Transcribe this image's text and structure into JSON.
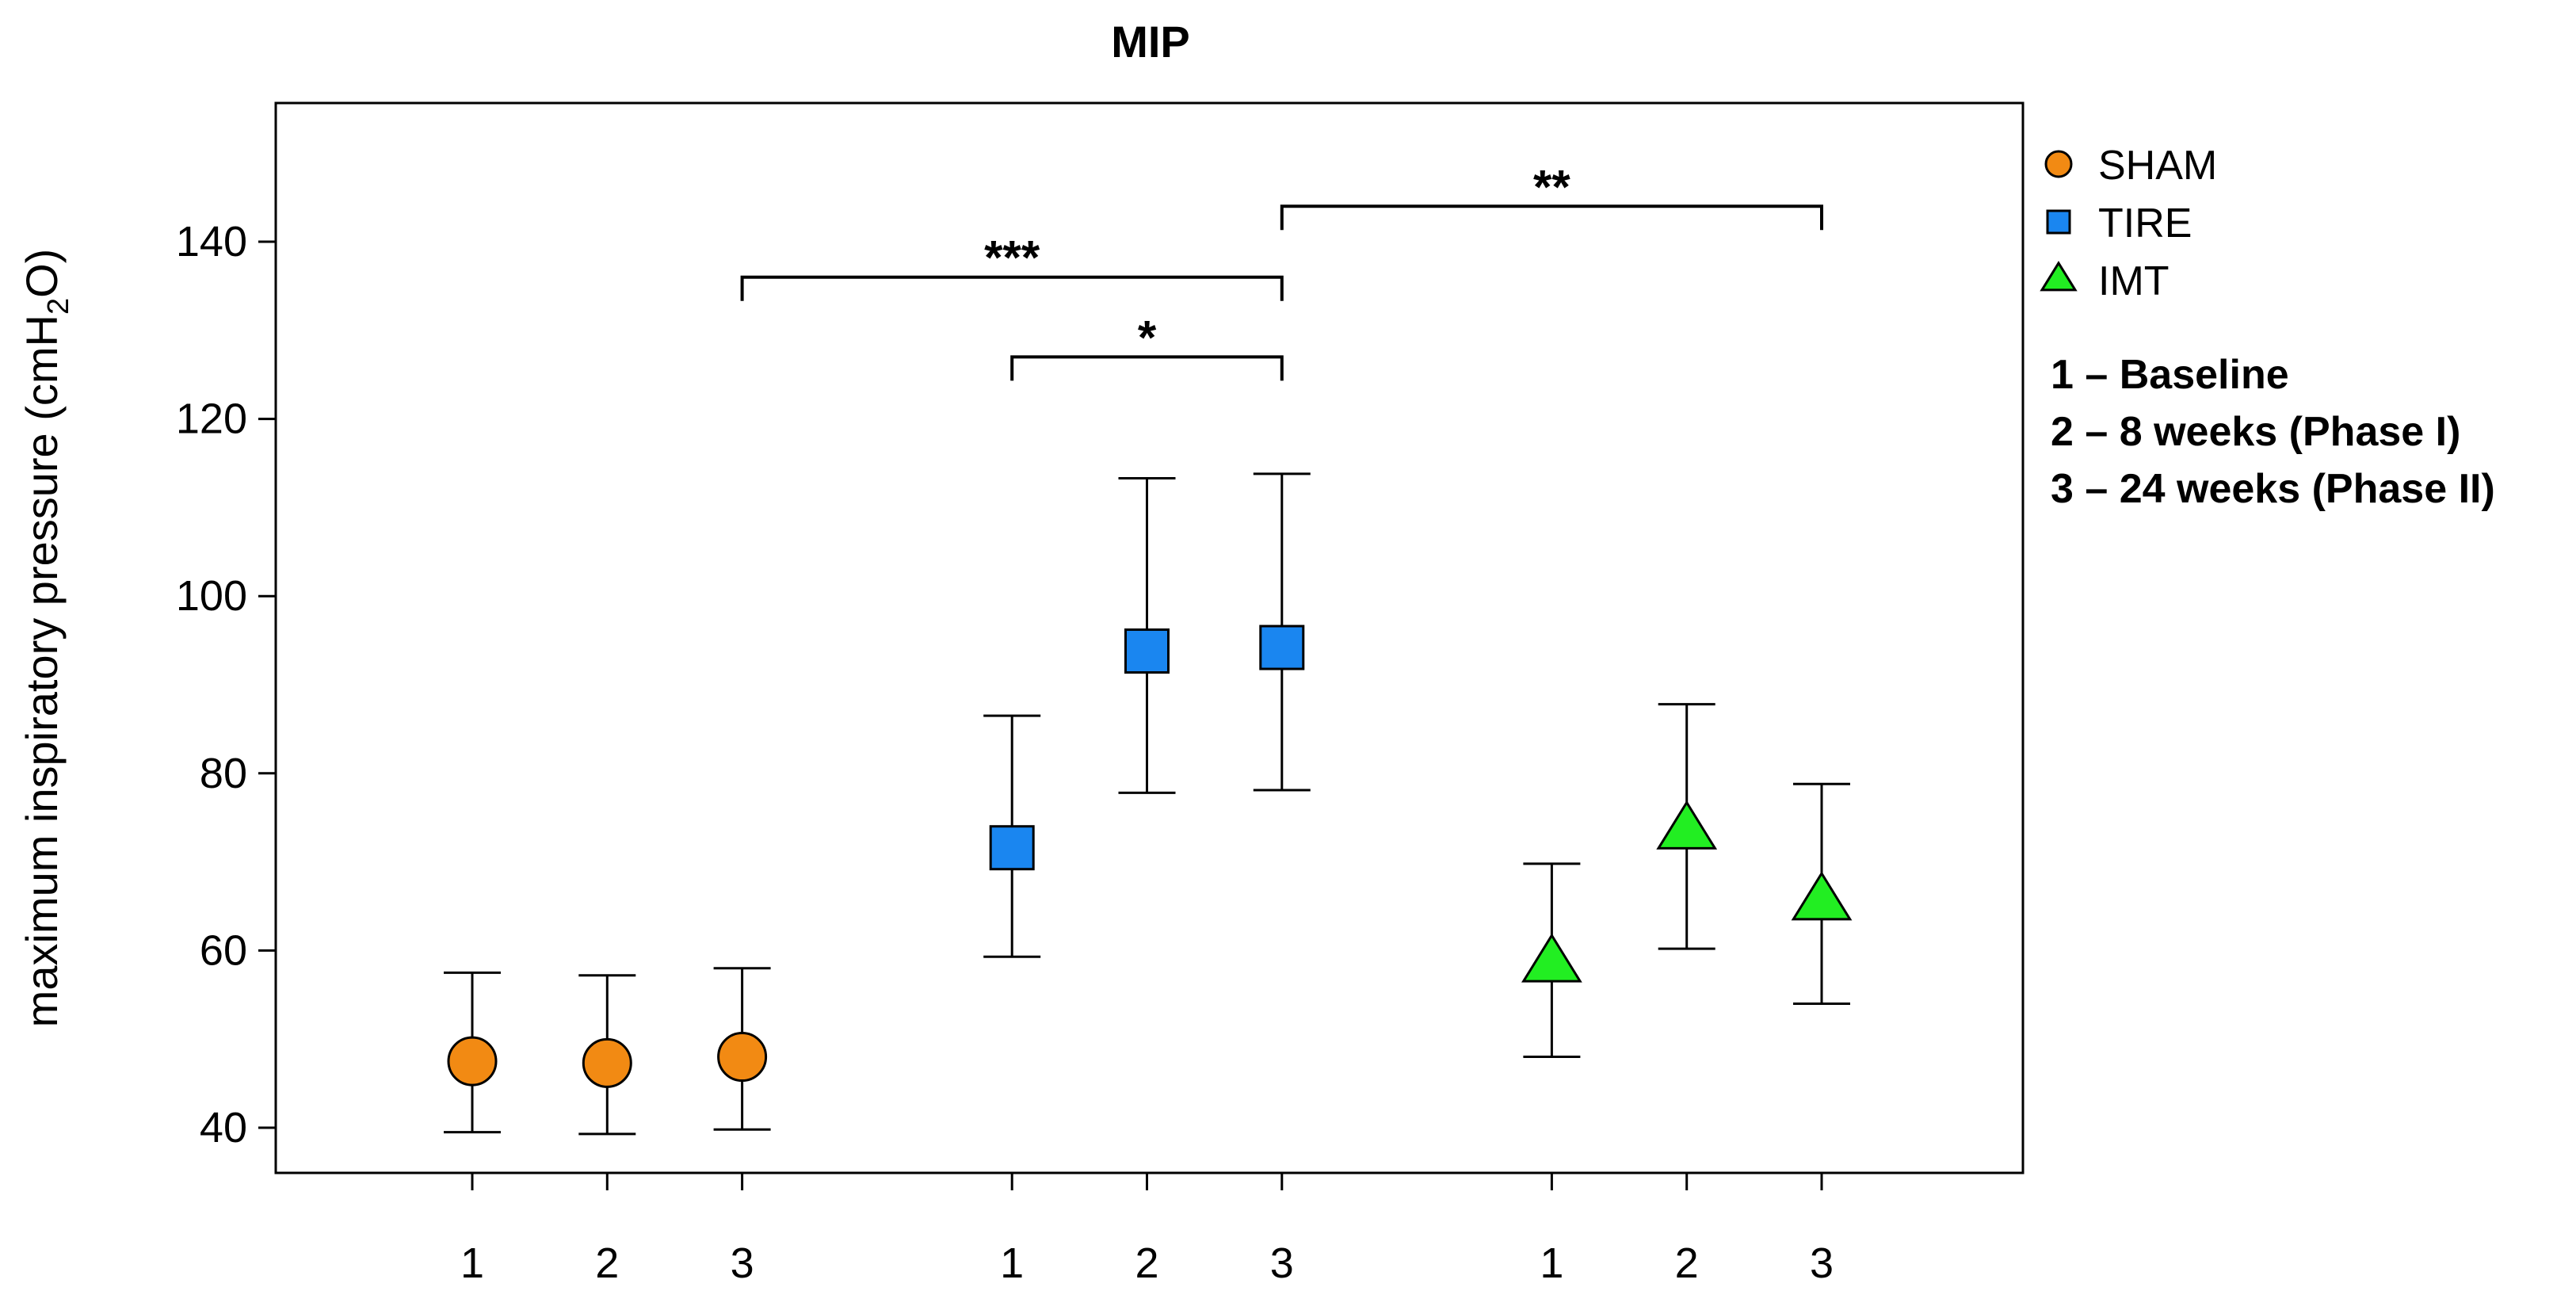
{
  "chart_data": {
    "type": "scatter",
    "title": "MIP",
    "ylabel": {
      "main": "maximum inspiratory pressure (cmH",
      "sub": "2",
      "end": "O)"
    },
    "xlabel": "",
    "ylim": [
      36,
      157
    ],
    "y_ticks": [
      40,
      60,
      80,
      100,
      120,
      140
    ],
    "x_tick_labels": [
      "1",
      "2",
      "3",
      "1",
      "2",
      "3",
      "1",
      "2",
      "3"
    ],
    "series": [
      {
        "name": "SHAM",
        "marker": "circle",
        "color": "#f28a13",
        "points": [
          {
            "x": 1,
            "time": "1",
            "mean": 47.5,
            "lower": 39.5,
            "upper": 57.5
          },
          {
            "x": 2,
            "time": "2",
            "mean": 47.3,
            "lower": 39.3,
            "upper": 57.2
          },
          {
            "x": 3,
            "time": "3",
            "mean": 48.0,
            "lower": 39.8,
            "upper": 58.0
          }
        ]
      },
      {
        "name": "TIRE",
        "marker": "square",
        "color": "#1a86f0",
        "points": [
          {
            "x": 5,
            "time": "1",
            "mean": 71.6,
            "lower": 59.3,
            "upper": 86.5
          },
          {
            "x": 6,
            "time": "2",
            "mean": 93.8,
            "lower": 77.8,
            "upper": 113.3
          },
          {
            "x": 7,
            "time": "3",
            "mean": 94.2,
            "lower": 78.1,
            "upper": 113.8
          }
        ]
      },
      {
        "name": "IMT",
        "marker": "triangle",
        "color": "#22ee22",
        "points": [
          {
            "x": 9,
            "time": "1",
            "mean": 58.5,
            "lower": 48.0,
            "upper": 69.8
          },
          {
            "x": 10,
            "time": "2",
            "mean": 73.5,
            "lower": 60.2,
            "upper": 87.8
          },
          {
            "x": 11,
            "time": "3",
            "mean": 65.5,
            "lower": 54.0,
            "upper": 78.8
          }
        ]
      }
    ],
    "significance": [
      {
        "x1": 3,
        "x2": 7,
        "y": 136,
        "label": "***"
      },
      {
        "x1": 5,
        "x2": 7,
        "y": 127,
        "label": "*"
      },
      {
        "x1": 7,
        "x2": 11,
        "y": 144,
        "label": "**"
      }
    ],
    "legend": {
      "position": "right",
      "entries": [
        "SHAM",
        "TIRE",
        "IMT"
      ],
      "notes": [
        "1 – Baseline",
        "2 – 8 weeks (Phase I)",
        "3 – 24 weeks (Phase II)"
      ]
    }
  }
}
